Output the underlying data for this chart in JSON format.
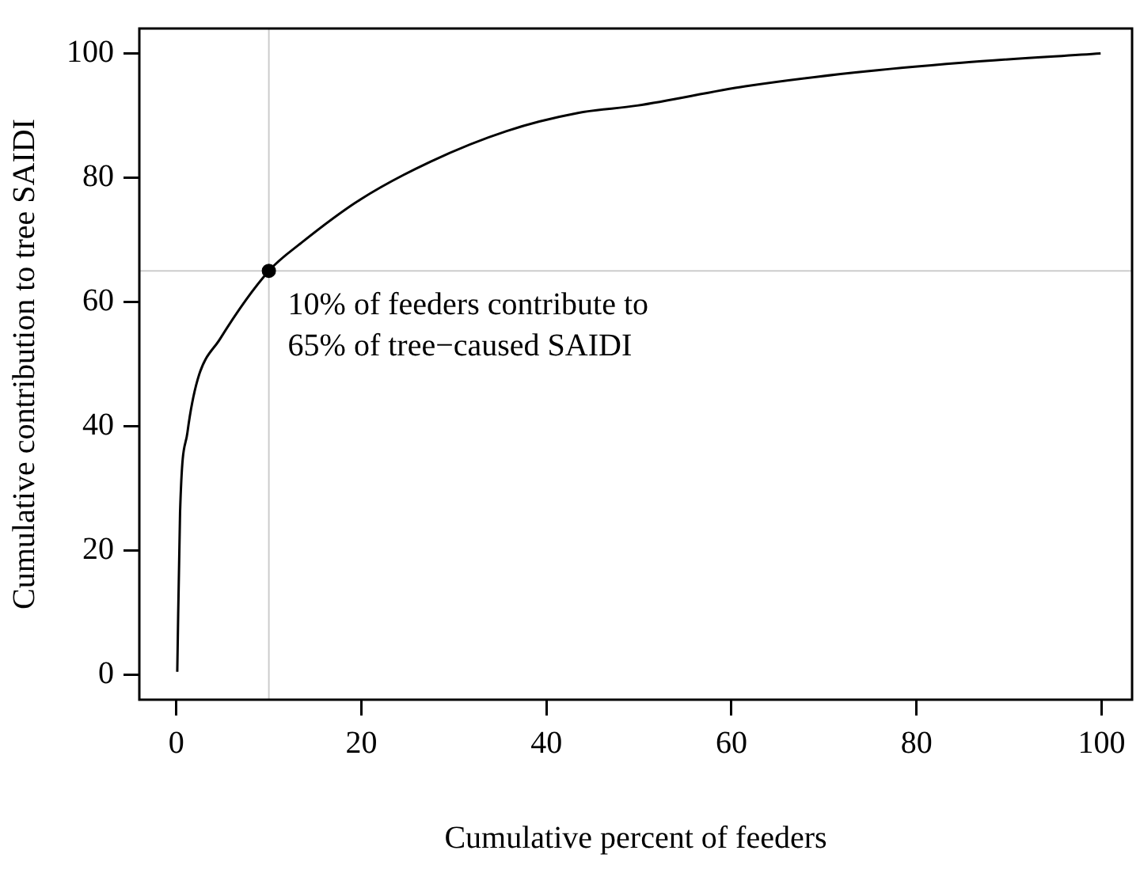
{
  "chart_data": {
    "type": "line",
    "xlabel": "Cumulative percent of feeders",
    "ylabel": "Cumulative contribution to tree SAIDI",
    "xlim": [
      -4,
      103.3
    ],
    "ylim": [
      -4,
      104
    ],
    "xticks": [
      0,
      20,
      40,
      60,
      80,
      100
    ],
    "yticks": [
      0,
      20,
      40,
      60,
      80,
      100
    ],
    "grid": false,
    "legend": false,
    "series": [
      {
        "color": "#000000",
        "marker": "none",
        "line_style": "solid",
        "x": [
          0.1,
          0.4,
          1.2,
          2.3,
          4.7,
          10,
          13.5,
          19.9,
          27.5,
          35.7,
          43.4,
          49.8,
          61.5,
          73.2,
          84.9,
          99.9
        ],
        "values": [
          0.5,
          26,
          39,
          47.5,
          54,
          65,
          69.5,
          76.5,
          82.6,
          87.5,
          90.4,
          91.6,
          94.7,
          96.9,
          98.5,
          100
        ]
      },
      {
        "type": "scatter",
        "color": "#000000",
        "marker": "circle",
        "x": [
          10
        ],
        "values": [
          65
        ]
      }
    ],
    "ref_lines": [
      {
        "axis": "x",
        "value": 10,
        "color": "#cccccc"
      },
      {
        "axis": "y",
        "value": 65,
        "color": "#cccccc"
      }
    ],
    "annotations": [
      {
        "text": "10% of feeders contribute to\n65% of tree−caused SAIDI",
        "x": 10,
        "y": 65
      }
    ]
  }
}
